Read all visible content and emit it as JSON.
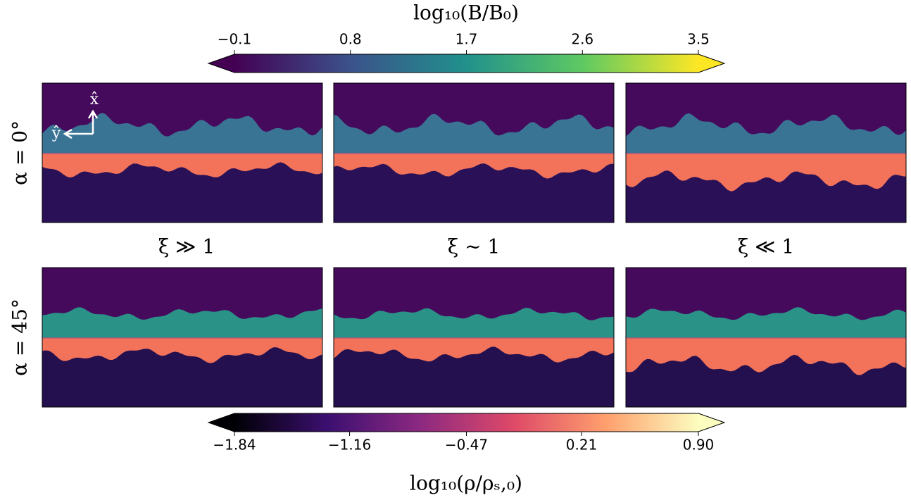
{
  "chart_data": {
    "type": "heatmap-grid",
    "row_labels": [
      "α = 0°",
      "α = 45°"
    ],
    "column_labels": [
      "ξ ≫ 1",
      "ξ ~ 1",
      "ξ ≪ 1"
    ],
    "axis_labels": {
      "x": "x̂",
      "y": "ŷ"
    },
    "colorbars": [
      {
        "label": "log₁₀(B/B₀)",
        "lim": [
          -0.1,
          3.5
        ],
        "ticks": [
          {
            "value": -0.1,
            "label": "−0.1"
          },
          0.8,
          1.7,
          2.6,
          3.5
        ],
        "colors": [
          "#440154",
          "#3b528b",
          "#21918c",
          "#5ec962",
          "#fde725"
        ]
      },
      {
        "label": "log₁₀(ρ/ρₛ,₀)",
        "lim": [
          -1.84,
          0.9
        ],
        "ticks": [
          {
            "value": -1.84,
            "label": "−1.84"
          },
          {
            "value": -1.16,
            "label": "−1.16"
          },
          {
            "value": -0.47,
            "label": "−0.47"
          },
          0.21,
          {
            "value": 0.9,
            "label": "0.90"
          }
        ],
        "colors": [
          "#000004",
          "#3b0f70",
          "#8c2981",
          "#de4968",
          "#fe9f6d",
          "#fcfdbf"
        ]
      }
    ]
  }
}
